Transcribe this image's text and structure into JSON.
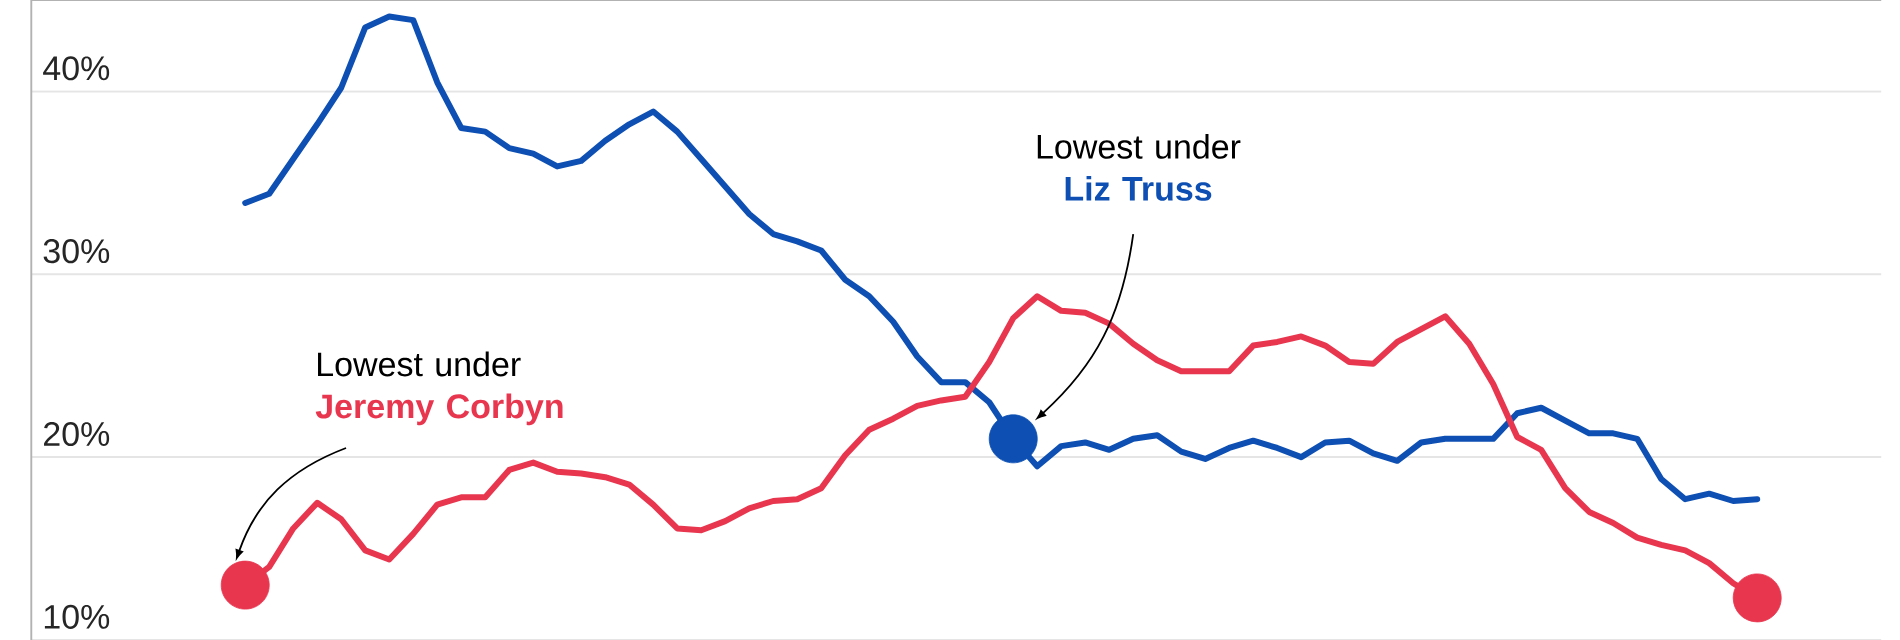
{
  "chart_data": {
    "type": "line",
    "categories": [
      null,
      null,
      null,
      null,
      null,
      null,
      null,
      null,
      null,
      null,
      null,
      null,
      null,
      null,
      null,
      null,
      null,
      null,
      null,
      null,
      null,
      null,
      null,
      null,
      null,
      null,
      null,
      null,
      null,
      null,
      null,
      null,
      null,
      null,
      null,
      null,
      null,
      null,
      null,
      null,
      null,
      null,
      null,
      null,
      null,
      null,
      null,
      null,
      null,
      null,
      null,
      null,
      null,
      null,
      null,
      null,
      null,
      null,
      null,
      null,
      null,
      null,
      null,
      null
    ],
    "series": [
      {
        "color": "#0d4fb3",
        "values": [
          33.9,
          34.4,
          36.3,
          38.2,
          40.2,
          43.5,
          44.1,
          43.9,
          40.5,
          38.0,
          37.8,
          36.9,
          36.6,
          35.9,
          36.2,
          37.3,
          38.2,
          38.9,
          37.8,
          36.3,
          34.8,
          33.3,
          32.2,
          31.8,
          31.3,
          29.7,
          28.8,
          27.4,
          25.5,
          24.1,
          24.1,
          23.0,
          21.0,
          19.5,
          20.6,
          20.8,
          20.4,
          21.0,
          21.2,
          20.3,
          19.9,
          20.5,
          20.9,
          20.5,
          20.0,
          20.8,
          20.9,
          20.2,
          19.8,
          20.8,
          21.0,
          21.0,
          21.0,
          22.4,
          22.7,
          22.0,
          21.3,
          21.3,
          21.0,
          18.8,
          17.7,
          18.0,
          17.6,
          17.7
        ]
      },
      {
        "color": "#e8364f",
        "values": [
          13.0,
          14.0,
          16.1,
          17.5,
          16.6,
          14.9,
          14.4,
          15.8,
          17.4,
          17.8,
          17.8,
          19.3,
          19.7,
          19.2,
          19.1,
          18.9,
          18.5,
          17.4,
          16.1,
          16.0,
          16.5,
          17.2,
          17.6,
          17.7,
          18.3,
          20.1,
          21.5,
          22.1,
          22.8,
          23.1,
          23.3,
          25.2,
          27.6,
          28.8,
          28.0,
          27.9,
          27.3,
          26.2,
          25.3,
          24.7,
          24.7,
          24.7,
          26.1,
          26.3,
          26.6,
          26.1,
          25.2,
          25.1,
          26.3,
          27.0,
          27.7,
          26.2,
          24.0,
          21.1,
          20.4,
          18.3,
          17.0,
          16.4,
          15.6,
          15.2,
          14.9,
          14.2,
          13.1,
          12.3
        ]
      },
      {
        "type": "scatter",
        "color": "#0d4fb3",
        "values": [
          null,
          null,
          null,
          null,
          null,
          null,
          null,
          null,
          null,
          null,
          null,
          null,
          null,
          null,
          null,
          null,
          null,
          null,
          null,
          null,
          null,
          null,
          null,
          null,
          null,
          null,
          null,
          null,
          null,
          null,
          null,
          null,
          21.0,
          null,
          null,
          null,
          null,
          null,
          null,
          null,
          null,
          null,
          null,
          null,
          null,
          null,
          null,
          null,
          null,
          null,
          null,
          null,
          null,
          null,
          null,
          null,
          null,
          null,
          null,
          null,
          null,
          null,
          null,
          null
        ]
      },
      {
        "type": "scatter",
        "color": "#e8364f",
        "values": [
          13.0,
          null,
          null,
          null,
          null,
          null,
          null,
          null,
          null,
          null,
          null,
          null,
          null,
          null,
          null,
          null,
          null,
          null,
          null,
          null,
          null,
          null,
          null,
          null,
          null,
          null,
          null,
          null,
          null,
          null,
          null,
          null,
          null,
          null,
          null,
          null,
          null,
          null,
          null,
          null,
          null,
          null,
          null,
          null,
          null,
          null,
          null,
          null,
          null,
          null,
          null,
          null,
          null,
          null,
          null,
          null,
          null,
          null,
          null,
          null,
          null,
          null,
          null,
          12.3
        ]
      }
    ],
    "annotations": [
      "Lowest under **Jeremy Corbyn**",
      "Lowest under **Liz Truss**"
    ],
    "ylim": [
      10,
      45
    ],
    "yticks": [
      {
        "value": 10,
        "label": "10%"
      },
      {
        "value": 20,
        "label": "20%"
      },
      {
        "value": 30,
        "label": "30%"
      },
      {
        "value": 40,
        "label": "40%"
      }
    ],
    "grid": "y",
    "line_style": "solid",
    "marker": "none"
  }
}
